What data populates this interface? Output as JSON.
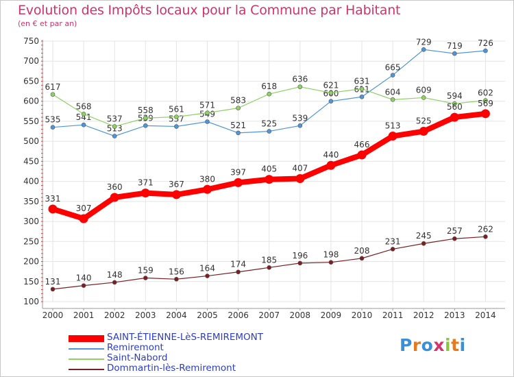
{
  "header": {
    "title": "Evolution des Impôts locaux pour la Commune par Habitant",
    "subtitle": "(en € et par an)"
  },
  "logo": {
    "letters": [
      "P",
      "r",
      "o",
      "x",
      "i",
      "t",
      "i"
    ],
    "colors": [
      "#3a8fd8",
      "#e8791f",
      "#3a8fd8",
      "#d6336c",
      "#8cc63f",
      "#e8791f",
      "#3a8fd8"
    ]
  },
  "chart_data": {
    "type": "line",
    "x": [
      "2000",
      "2001",
      "2002",
      "2003",
      "2004",
      "2005",
      "2006",
      "2007",
      "2008",
      "2009",
      "2010",
      "2011",
      "2012",
      "2013",
      "2014"
    ],
    "ylim": [
      100,
      750
    ],
    "yticks": [
      100,
      150,
      200,
      250,
      300,
      350,
      400,
      450,
      500,
      550,
      600,
      650,
      700,
      750
    ],
    "grid": true,
    "legend_position": "bottom",
    "title": "Evolution des Impôts locaux pour la Commune par Habitant",
    "subtitle": "(en € et par an)",
    "series": [
      {
        "name": "SAINT-ÉTIENNE-LèS-REMIREMONT",
        "color": "#ff0000",
        "values": [
          331,
          307,
          360,
          371,
          367,
          380,
          397,
          405,
          407,
          440,
          466,
          513,
          525,
          560,
          569
        ]
      },
      {
        "name": "Remiremont",
        "color": "#4f96d6",
        "values": [
          535,
          541,
          513,
          539,
          537,
          549,
          521,
          525,
          539,
          600,
          611,
          665,
          729,
          719,
          726
        ]
      },
      {
        "name": "Saint-Nabord",
        "color": "#8fd163",
        "values": [
          617,
          568,
          537,
          558,
          561,
          571,
          583,
          618,
          636,
          621,
          631,
          604,
          609,
          594,
          602
        ]
      },
      {
        "name": "Dommartin-lès-Remiremont",
        "color": "#7a1f24",
        "values": [
          131,
          140,
          148,
          159,
          156,
          164,
          174,
          185,
          196,
          198,
          208,
          231,
          245,
          257,
          262
        ]
      }
    ]
  }
}
